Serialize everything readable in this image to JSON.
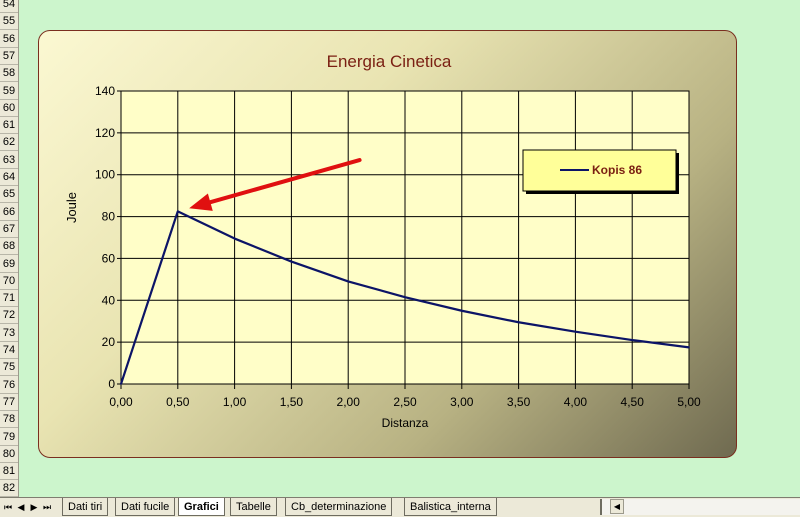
{
  "spreadsheet": {
    "row_numbers": [
      "54",
      "55",
      "56",
      "57",
      "58",
      "59",
      "60",
      "61",
      "62",
      "63",
      "64",
      "65",
      "66",
      "67",
      "68",
      "69",
      "70",
      "71",
      "72",
      "73",
      "74",
      "75",
      "76",
      "77",
      "78",
      "79",
      "80",
      "81",
      "82"
    ],
    "sheet_tabs": [
      "Dati tiri",
      "Dati fucile",
      "Grafici",
      "Tabelle",
      "Cb_determinazione",
      "Balistica_interna"
    ],
    "active_tab": "Grafici",
    "nav_buttons": [
      "⏮",
      "◀",
      "▶",
      "⏭"
    ]
  },
  "colors": {
    "title": "#7a1f12",
    "series": "#0c1467",
    "arrow": "#e01010",
    "plot_bg": "#fffec8",
    "legend_bg": "#ffff99"
  },
  "chart_data": {
    "type": "line",
    "title": "Energia Cinetica",
    "xlabel": "Distanza",
    "ylabel": "Joule",
    "xlim": [
      0,
      5
    ],
    "ylim": [
      0,
      140
    ],
    "x_ticks": [
      "0,00",
      "0,50",
      "1,00",
      "1,50",
      "2,00",
      "2,50",
      "3,00",
      "3,50",
      "4,00",
      "4,50",
      "5,00"
    ],
    "y_ticks": [
      "0",
      "20",
      "40",
      "60",
      "80",
      "100",
      "120",
      "140"
    ],
    "grid": true,
    "legend_position": "top-right",
    "series": [
      {
        "name": "Kopis 86",
        "x": [
          0,
          0.5,
          1.0,
          1.5,
          2.0,
          2.5,
          3.0,
          3.5,
          4.0,
          4.5,
          5.0
        ],
        "y": [
          0,
          82.5,
          69.5,
          58.5,
          49,
          41.5,
          35,
          29.5,
          25,
          21,
          17.5
        ]
      }
    ],
    "annotations": [
      {
        "type": "arrow",
        "from": [
          2.1,
          107
        ],
        "to": [
          0.6,
          84
        ]
      }
    ]
  }
}
